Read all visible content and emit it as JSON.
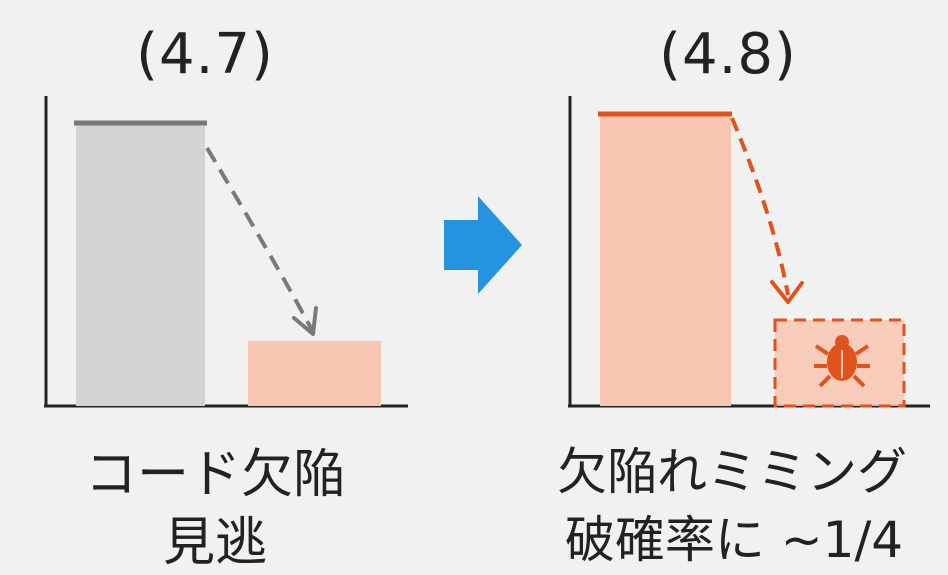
{
  "left_panel": {
    "title": "(4.7)",
    "caption_line1": "コード欠陥",
    "caption_line2": "見逃"
  },
  "right_panel": {
    "title": "(4.8)",
    "caption_line1": "欠陥れミミング",
    "caption_line2": "破確率に ~1/4"
  },
  "chart_data": [
    {
      "type": "bar",
      "panel": "(4.7)",
      "values": [
        1.0,
        0.23
      ],
      "bar_colors": [
        "#d3d3d3",
        "#f8c5b0"
      ],
      "top_line_color": "#777777"
    },
    {
      "type": "bar",
      "panel": "(4.8)",
      "values": [
        1.0,
        0.25
      ],
      "bar_colors": [
        "#f8c5b0",
        "#f8c5b0"
      ],
      "second_bar_style": "dashed-outline",
      "top_line_color": "#e0531c"
    }
  ],
  "colors": {
    "accent_orange": "#e0531c",
    "arrow_blue": "#2494e0",
    "gray": "#808080"
  },
  "icons": {
    "transition": "right-arrow-icon",
    "defect": "bug-icon"
  }
}
